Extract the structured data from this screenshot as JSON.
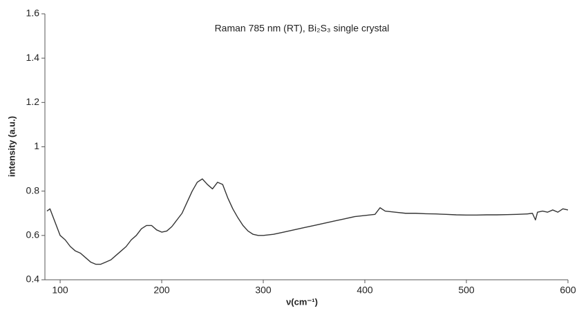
{
  "chart_data": {
    "type": "line",
    "title": "Raman 785 nm (RT), Bi₂S₃ single crystal",
    "xlabel": "ν(cm⁻¹)",
    "ylabel": "intensity (a.u.)",
    "xlim": [
      85,
      600
    ],
    "ylim": [
      0.4,
      1.6
    ],
    "xticks": [
      100,
      200,
      300,
      400,
      500,
      600
    ],
    "yticks": [
      0.4,
      0.6,
      0.8,
      1,
      1.2,
      1.4,
      1.6
    ],
    "grid": false,
    "series": [
      {
        "color": "#333333",
        "x": [
          87,
          90,
          95,
          100,
          105,
          110,
          115,
          120,
          125,
          130,
          135,
          140,
          145,
          150,
          155,
          160,
          165,
          170,
          175,
          180,
          185,
          190,
          195,
          200,
          205,
          210,
          215,
          220,
          225,
          230,
          235,
          240,
          245,
          250,
          255,
          260,
          265,
          270,
          275,
          280,
          285,
          290,
          295,
          300,
          310,
          320,
          330,
          340,
          350,
          360,
          370,
          380,
          390,
          400,
          410,
          415,
          420,
          430,
          440,
          450,
          460,
          470,
          480,
          490,
          500,
          510,
          520,
          530,
          540,
          550,
          560,
          565,
          568,
          570,
          575,
          580,
          585,
          590,
          595,
          600
        ],
        "values": [
          0.71,
          0.72,
          0.66,
          0.6,
          0.58,
          0.55,
          0.53,
          0.52,
          0.5,
          0.48,
          0.47,
          0.47,
          0.48,
          0.49,
          0.51,
          0.53,
          0.55,
          0.58,
          0.6,
          0.63,
          0.645,
          0.645,
          0.625,
          0.615,
          0.62,
          0.64,
          0.67,
          0.7,
          0.75,
          0.8,
          0.84,
          0.855,
          0.83,
          0.81,
          0.84,
          0.83,
          0.77,
          0.72,
          0.68,
          0.645,
          0.62,
          0.605,
          0.6,
          0.6,
          0.605,
          0.615,
          0.625,
          0.635,
          0.645,
          0.655,
          0.665,
          0.675,
          0.685,
          0.69,
          0.695,
          0.725,
          0.71,
          0.705,
          0.7,
          0.7,
          0.698,
          0.697,
          0.695,
          0.693,
          0.692,
          0.692,
          0.693,
          0.693,
          0.694,
          0.695,
          0.697,
          0.7,
          0.67,
          0.705,
          0.71,
          0.705,
          0.715,
          0.705,
          0.72,
          0.715
        ]
      }
    ]
  }
}
